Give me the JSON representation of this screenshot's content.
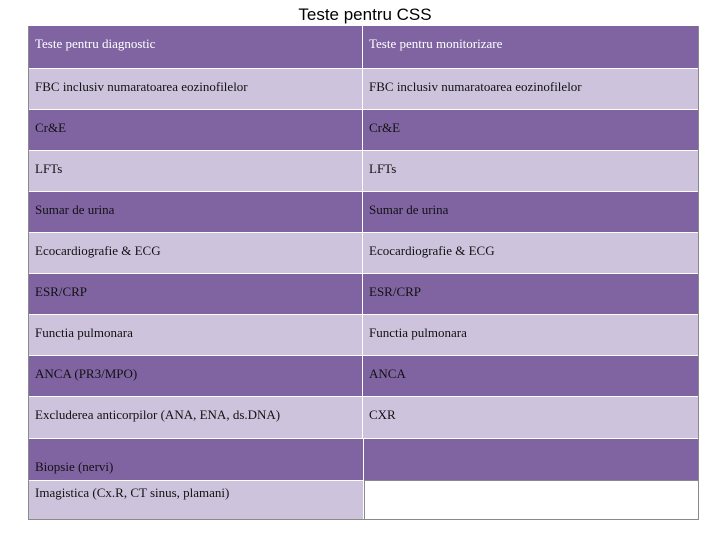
{
  "title": "Teste pentru CSS",
  "headers": {
    "diagnostic": "Teste pentru diagnostic",
    "monitoring": "Teste pentru monitorizare"
  },
  "rows": [
    {
      "diagnostic": "FBC inclusiv numaratoarea eozinofilelor",
      "monitoring": "FBC inclusiv numaratoarea eozinofilelor"
    },
    {
      "diagnostic": "Cr&E",
      "monitoring": "Cr&E"
    },
    {
      "diagnostic": "LFTs",
      "monitoring": "LFTs"
    },
    {
      "diagnostic": "Sumar de urina",
      "monitoring": "Sumar de urina"
    },
    {
      "diagnostic": "Ecocardiografie & ECG",
      "monitoring": "Ecocardiografie & ECG"
    },
    {
      "diagnostic": "ESR/CRP",
      "monitoring": "ESR/CRP"
    },
    {
      "diagnostic": "Functia pulmonara",
      "monitoring": "Functia pulmonara"
    },
    {
      "diagnostic": "ANCA (PR3/MPO)",
      "monitoring": "ANCA"
    },
    {
      "diagnostic": "Excluderea anticorpilor (ANA, ENA, ds.DNA)",
      "monitoring": "CXR"
    }
  ],
  "last_rows": {
    "biopsy": "Biopsie (nervi)",
    "imaging": "Imagistica (Cx.R, CT sinus, plamani)"
  },
  "colors": {
    "dark": "#8064a2",
    "light": "#cec3dd"
  }
}
